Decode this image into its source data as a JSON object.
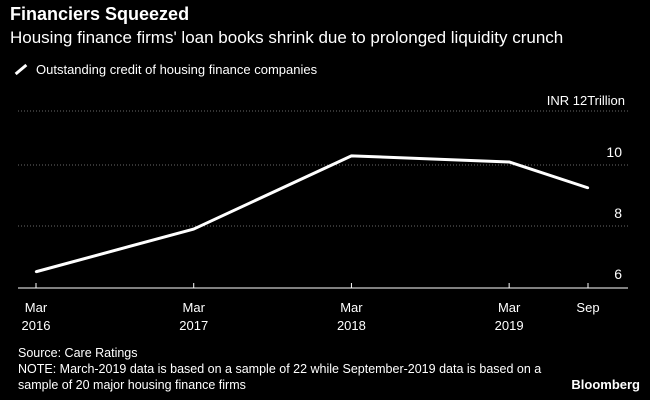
{
  "chart_data": {
    "type": "line",
    "title": "Financiers Squeezed",
    "subtitle": "Housing finance firms' loan books shrink due to prolonged liquidity crunch",
    "legend": "Outstanding credit of housing finance companies",
    "unit_label": "INR 12Trillion",
    "y_ticks": [
      6,
      8,
      10
    ],
    "ylim": [
      5.5,
      12
    ],
    "x_categories": [
      {
        "top": "Mar",
        "bottom": "2016"
      },
      {
        "top": "Mar",
        "bottom": "2017"
      },
      {
        "top": "Mar",
        "bottom": "2018"
      },
      {
        "top": "Mar",
        "bottom": "2019"
      },
      {
        "top": "Sep",
        "bottom": ""
      }
    ],
    "x_positions": [
      0,
      1,
      2,
      3,
      3.5
    ],
    "series": [
      {
        "name": "Outstanding credit of housing finance companies",
        "values": [
          6.5,
          7.9,
          10.3,
          10.1,
          9.25
        ]
      }
    ],
    "colors": {
      "line": "#ffffff",
      "grid": "#6a6a6a",
      "background": "#000000"
    }
  },
  "source": "Source: Care Ratings",
  "note": "NOTE: March-2019 data is based on a sample of 22 while September-2019 data is based on a sample of 20 major housing finance firms",
  "brand": "Bloomberg"
}
